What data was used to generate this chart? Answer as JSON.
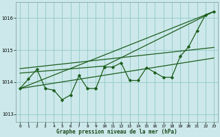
{
  "title": "Graphe pression niveau de la mer (hPa)",
  "background_color": "#cce8ea",
  "grid_color": "#99cccc",
  "line_color": "#1a5c1a",
  "xlim": [
    -0.5,
    23.5
  ],
  "ylim": [
    1012.75,
    1016.5
  ],
  "yticks": [
    1013,
    1014,
    1015,
    1016
  ],
  "xticks": [
    0,
    1,
    2,
    3,
    4,
    5,
    6,
    7,
    8,
    9,
    10,
    11,
    12,
    13,
    14,
    15,
    16,
    17,
    18,
    19,
    20,
    21,
    22,
    23
  ],
  "series_jagged_left": {
    "x": [
      0,
      1,
      2,
      3,
      4,
      5,
      6,
      7,
      8,
      9
    ],
    "y": [
      1013.8,
      1014.1,
      1014.4,
      1013.8,
      1013.75,
      1013.45,
      1013.6,
      1014.2,
      1013.8,
      1013.8
    ]
  },
  "series_jagged_right": {
    "x": [
      10,
      11,
      12,
      13,
      14,
      15,
      16,
      17,
      18,
      19,
      20,
      21,
      22,
      23
    ],
    "y": [
      1014.47,
      1014.47,
      1014.6,
      1014.05,
      1014.05,
      1014.45,
      1014.3,
      1014.15,
      1014.15,
      1014.8,
      1015.1,
      1015.6,
      1016.1,
      1016.2
    ]
  },
  "trend1": {
    "x": [
      0,
      23
    ],
    "y": [
      1013.8,
      1014.75
    ]
  },
  "trend2": {
    "x": [
      0,
      23
    ],
    "y": [
      1014.42,
      1015.08
    ]
  },
  "trend3": {
    "x": [
      0,
      10,
      23
    ],
    "y": [
      1014.28,
      1014.5,
      1016.2
    ]
  },
  "trend4": {
    "x": [
      0,
      23
    ],
    "y": [
      1013.8,
      1016.2
    ]
  }
}
